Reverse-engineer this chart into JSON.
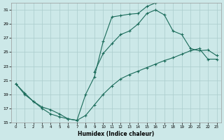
{
  "xlabel": "Humidex (Indice chaleur)",
  "background_color": "#cce8e8",
  "grid_color": "#aacccc",
  "line_color": "#1a6b5a",
  "ylim": [
    15,
    32
  ],
  "xlim": [
    -0.5,
    23.5
  ],
  "yticks": [
    15,
    17,
    19,
    21,
    23,
    25,
    27,
    29,
    31
  ],
  "xticks": [
    0,
    1,
    2,
    3,
    4,
    5,
    6,
    7,
    8,
    9,
    10,
    11,
    12,
    13,
    14,
    15,
    16,
    17,
    18,
    19,
    20,
    21,
    22,
    23
  ],
  "line_A_x": [
    0,
    1,
    2,
    3,
    4,
    5,
    6,
    7,
    8,
    9,
    10,
    11,
    12,
    13,
    14,
    15,
    16
  ],
  "line_A_y": [
    20.5,
    19.0,
    18.0,
    17.2,
    16.8,
    16.2,
    15.5,
    15.3,
    19.0,
    21.5,
    26.5,
    30.0,
    30.2,
    30.4,
    30.5,
    31.5,
    32.0
  ],
  "line_B_x": [
    0,
    1,
    2,
    3,
    4,
    5,
    6,
    7,
    8,
    9,
    10,
    11,
    12,
    13,
    14,
    15,
    16,
    17,
    18,
    19,
    20,
    21,
    22,
    23
  ],
  "line_B_y": [
    20.5,
    19.2,
    18.0,
    17.0,
    16.2,
    15.8,
    15.5,
    15.3,
    16.0,
    17.5,
    19.0,
    20.2,
    21.2,
    21.8,
    22.3,
    22.8,
    23.3,
    23.8,
    24.2,
    24.7,
    25.2,
    25.5,
    24.0,
    24.0
  ],
  "line_C_x": [
    9,
    10,
    11,
    12,
    13,
    14,
    15,
    16,
    17,
    18,
    19,
    20,
    21,
    22,
    23
  ],
  "line_C_y": [
    22.2,
    24.8,
    26.2,
    27.5,
    28.0,
    29.0,
    30.5,
    31.0,
    30.3,
    28.0,
    27.5,
    25.5,
    25.2,
    25.3,
    24.5
  ]
}
